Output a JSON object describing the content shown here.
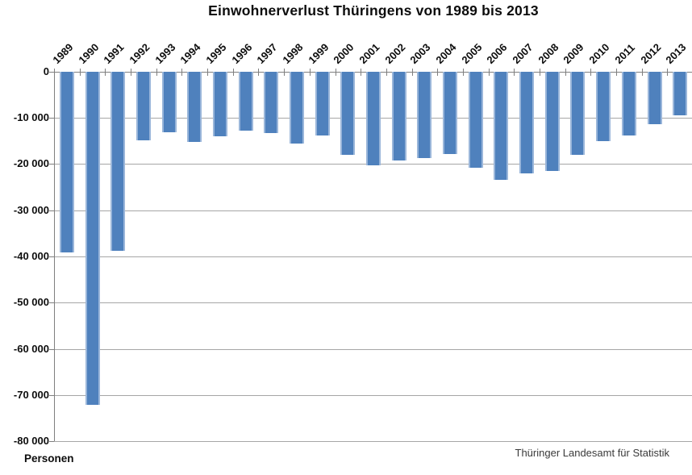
{
  "title_bar": {
    "title": "Einwohnerverlust Thüringens von 1989 bis 2013"
  },
  "footer": {
    "left": "Personen",
    "right": "Thüringer Landesamt für Statistik"
  },
  "colors": {
    "bar": "#4f81bd",
    "bar_edge": "#9ab6da",
    "gridline": "#a6a6a6",
    "axis": "#7f7f7f",
    "text": "#0d0d0d"
  },
  "y_axis": {
    "unit_label": "Personen",
    "min": -80000,
    "max": 0,
    "step": 10000,
    "tick_labels": [
      "0",
      "-10 000",
      "-20 000",
      "-30 000",
      "-40 000",
      "-50 000",
      "-60 000",
      "-70 000",
      "-80 000"
    ]
  },
  "chart_data": {
    "type": "bar",
    "title": "Einwohnerverlust Thüringens von 1989 bis 2013",
    "categories": [
      "1989",
      "1990",
      "1991",
      "1992",
      "1993",
      "1994",
      "1995",
      "1996",
      "1997",
      "1998",
      "1999",
      "2000",
      "2001",
      "2002",
      "2003",
      "2004",
      "2005",
      "2006",
      "2007",
      "2008",
      "2009",
      "2010",
      "2011",
      "2012",
      "2013"
    ],
    "values": [
      -39000,
      -72000,
      -38700,
      -14800,
      -13000,
      -15100,
      -14000,
      -12700,
      -13200,
      -15500,
      -13800,
      -17900,
      -20300,
      -19100,
      -18700,
      -17700,
      -20700,
      -23400,
      -21900,
      -21500,
      -17900,
      -15000,
      -13800,
      -11300,
      -9400
    ],
    "series_name": "Einwohnerverlust",
    "xlabel": "",
    "ylabel": "Personen",
    "ylim": [
      -80000,
      0
    ],
    "grid": true,
    "legend": false,
    "source": "Thüringer Landesamt für Statistik",
    "bar_color": "#4f81bd"
  }
}
